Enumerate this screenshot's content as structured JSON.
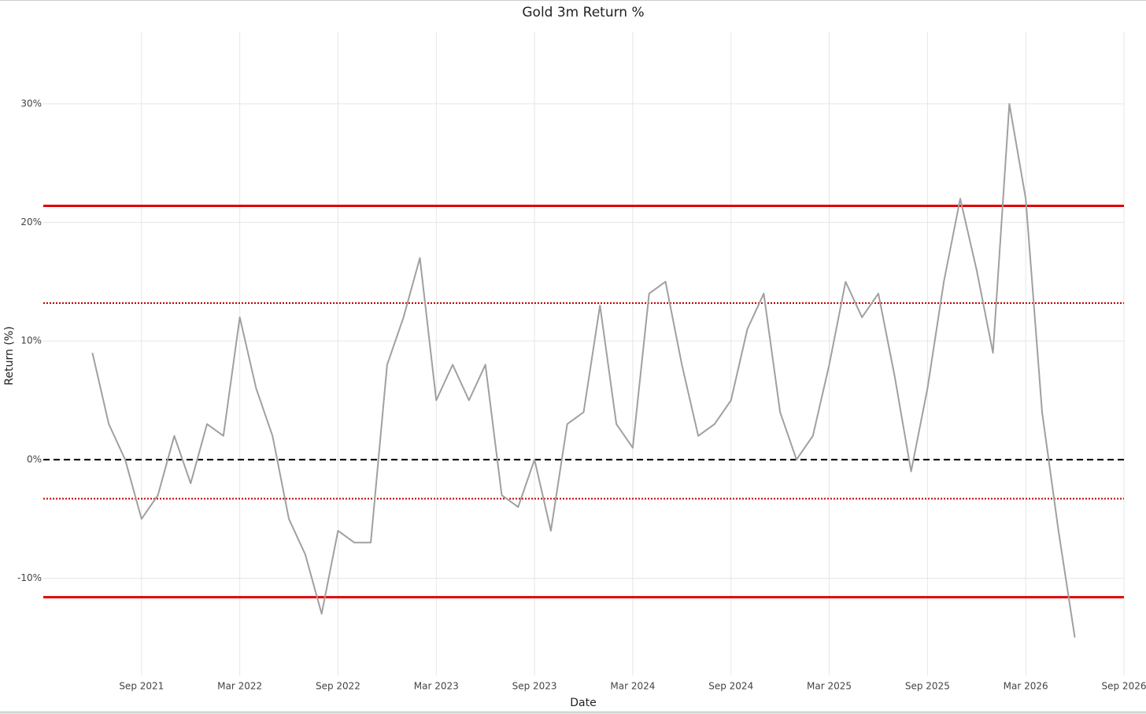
{
  "chart_data": {
    "type": "line",
    "title": "Gold 3m Return %",
    "x_label": "Date",
    "y_label": "Return (%)",
    "x": [
      "2021-06",
      "2021-07",
      "2021-08",
      "2021-09",
      "2021-10",
      "2021-11",
      "2021-12",
      "2022-01",
      "2022-02",
      "2022-03",
      "2022-04",
      "2022-05",
      "2022-06",
      "2022-07",
      "2022-08",
      "2022-09",
      "2022-10",
      "2022-11",
      "2022-12",
      "2023-01",
      "2023-02",
      "2023-03",
      "2023-04",
      "2023-05",
      "2023-06",
      "2023-07",
      "2023-08",
      "2023-09",
      "2023-10",
      "2023-11",
      "2023-12",
      "2024-01",
      "2024-02",
      "2024-03",
      "2024-04",
      "2024-05",
      "2024-06",
      "2024-07",
      "2024-08",
      "2024-09",
      "2024-10",
      "2024-11",
      "2024-12",
      "2025-01",
      "2025-02",
      "2025-03",
      "2025-04",
      "2025-05",
      "2025-06",
      "2025-07",
      "2025-08",
      "2025-09",
      "2025-10",
      "2025-11",
      "2025-12",
      "2026-01",
      "2026-02",
      "2026-03",
      "2026-04",
      "2026-05",
      "2026-06"
    ],
    "series": [
      {
        "color": "#a0a0a0",
        "values": [
          9,
          3,
          0,
          -5,
          -3,
          2,
          -2,
          3,
          2,
          12,
          6,
          2,
          -5,
          -8,
          -13,
          -6,
          -7,
          -7,
          8,
          12,
          17,
          5,
          8,
          5,
          8,
          -3,
          -4,
          0,
          -6,
          3,
          4,
          13,
          3,
          1,
          14,
          15,
          8,
          2,
          3,
          5,
          11,
          14,
          4,
          0,
          2,
          8,
          15,
          12,
          14,
          7,
          -1,
          6,
          15,
          22,
          16,
          9,
          30,
          22,
          4,
          -6,
          -15
        ]
      }
    ],
    "reference_lines": [
      {
        "value": 21.4,
        "color": "#e00000",
        "style": "solid"
      },
      {
        "value": 13.2,
        "color": "#c00000",
        "style": "dotted"
      },
      {
        "value": 0,
        "color": "#000000",
        "style": "dashed"
      },
      {
        "value": -3.3,
        "color": "#c00000",
        "style": "dotted"
      },
      {
        "value": -11.6,
        "color": "#e00000",
        "style": "solid"
      }
    ],
    "xlim": [
      "2021-03",
      "2026-09"
    ],
    "xticks": [
      {
        "value": "2021-09",
        "label": "Sep 2021"
      },
      {
        "value": "2022-03",
        "label": "Mar 2022"
      },
      {
        "value": "2022-09",
        "label": "Sep 2022"
      },
      {
        "value": "2023-03",
        "label": "Mar 2023"
      },
      {
        "value": "2023-09",
        "label": "Sep 2023"
      },
      {
        "value": "2024-03",
        "label": "Mar 2024"
      },
      {
        "value": "2024-09",
        "label": "Sep 2024"
      },
      {
        "value": "2025-03",
        "label": "Mar 2025"
      },
      {
        "value": "2025-09",
        "label": "Sep 2025"
      },
      {
        "value": "2026-03",
        "label": "Mar 2026"
      },
      {
        "value": "2026-09",
        "label": "Sep 2026"
      }
    ],
    "ylim": [
      -18.2,
      36.1
    ],
    "yticks": [
      {
        "value": -10,
        "label": "-10%"
      },
      {
        "value": 0,
        "label": "0%"
      },
      {
        "value": 10,
        "label": "10%"
      },
      {
        "value": 20,
        "label": "20%"
      },
      {
        "value": 30,
        "label": "30%"
      }
    ],
    "grid": true
  }
}
